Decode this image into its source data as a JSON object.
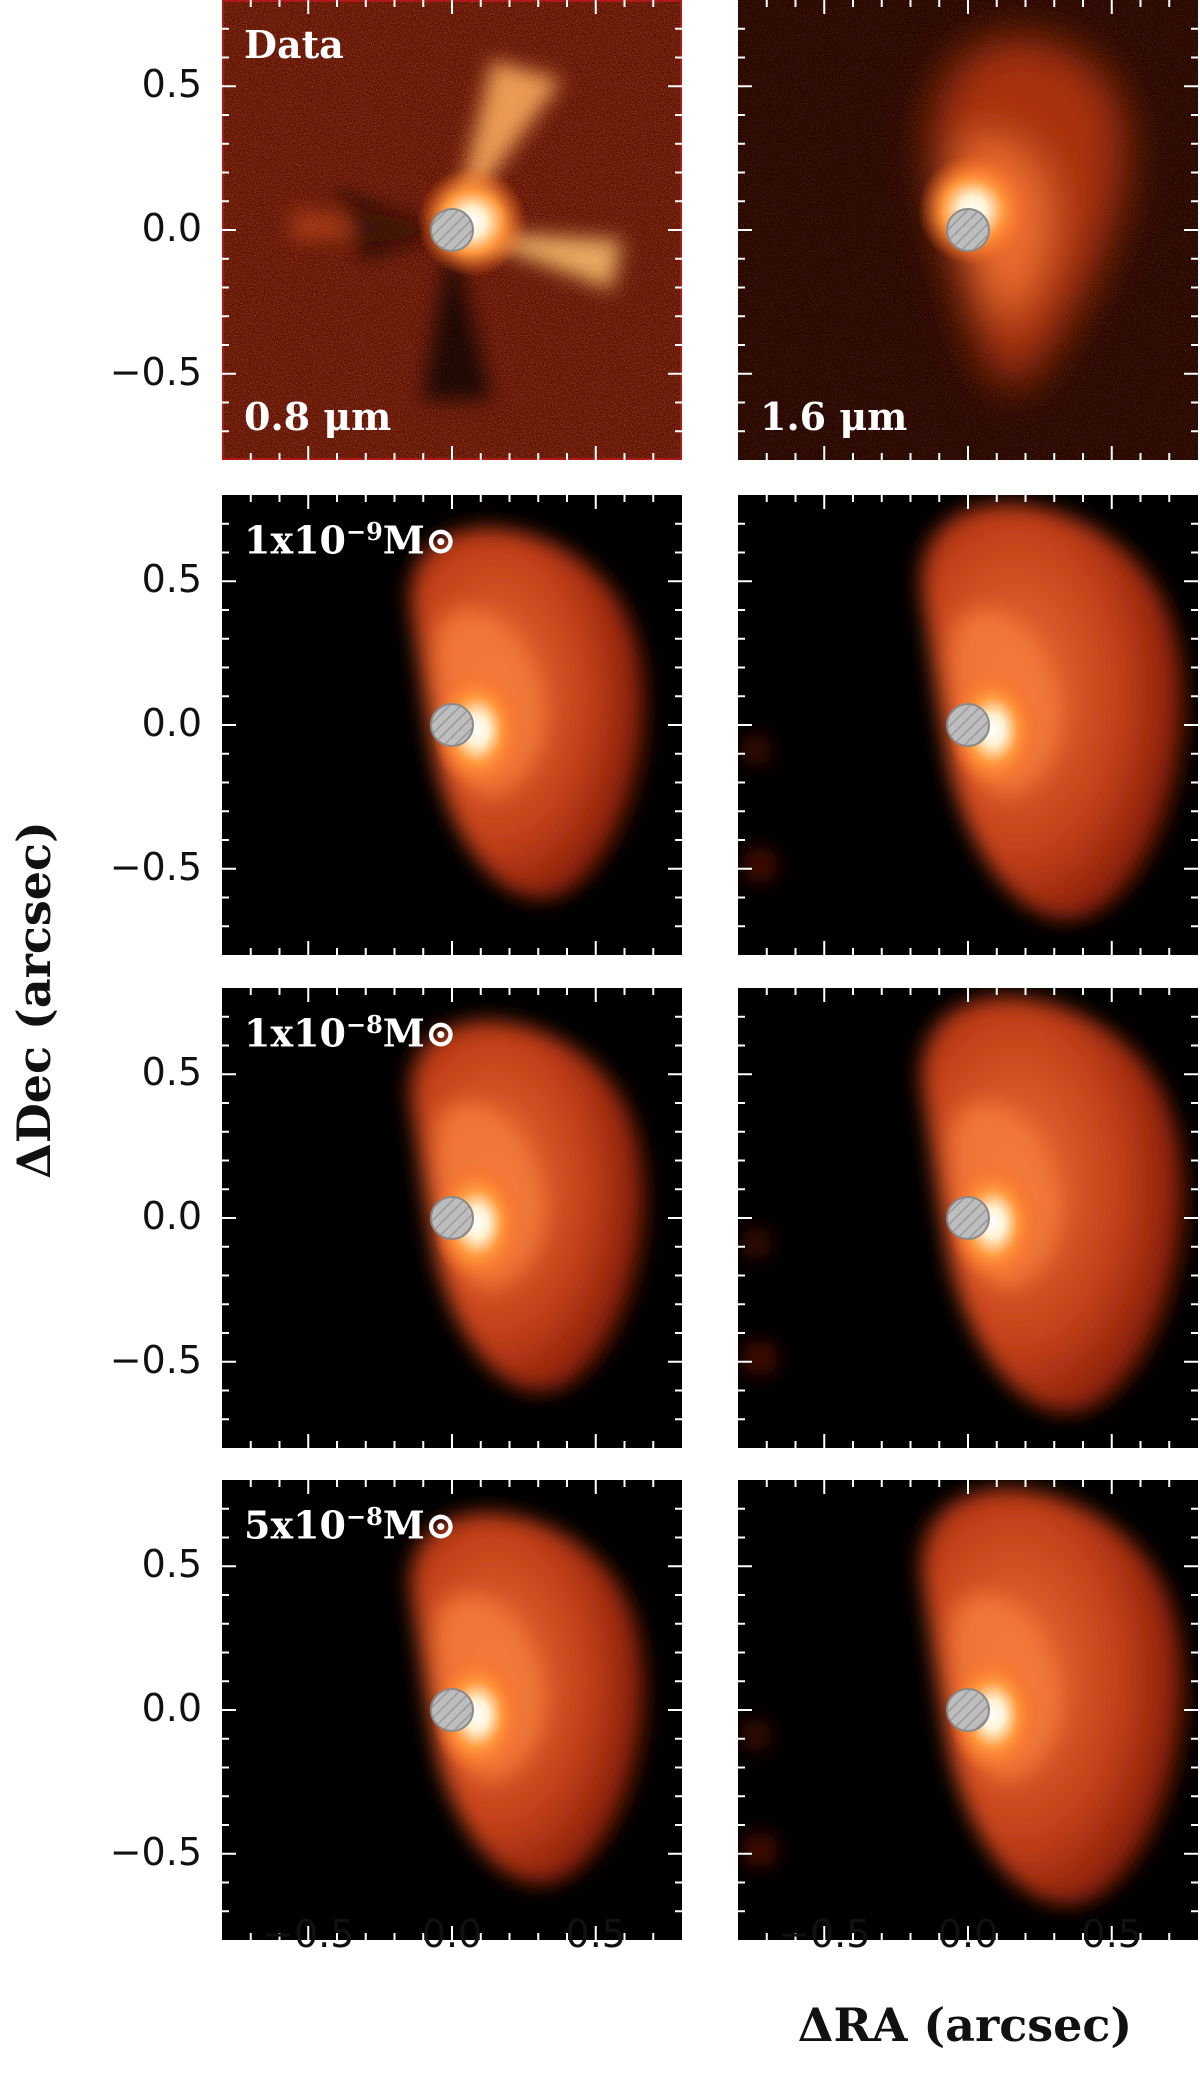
{
  "figure": {
    "ylabel": "ΔDec (arcsec)",
    "xlabel": "ΔRA (arcsec)",
    "y_ticks": [
      "0.5",
      "0.0",
      "−0.5"
    ],
    "x_ticks": [
      "−0.5",
      "0.0",
      "0.5"
    ],
    "axis_range_arcsec": [
      -0.8,
      0.8
    ],
    "colormap": "gist_heat",
    "colors": {
      "background": "#000000",
      "mask_fill": "#bdbdbd",
      "mask_edge": "#888888",
      "label_text": "#ffffff"
    }
  },
  "panels": [
    {
      "id": "p00",
      "row": 0,
      "col": 0,
      "label_top": "Data",
      "label_bottom": "0.8 μm",
      "kind": "data-short"
    },
    {
      "id": "p01",
      "row": 0,
      "col": 1,
      "label_top": "",
      "label_bottom": "1.6 μm",
      "kind": "data-long"
    },
    {
      "id": "p10",
      "row": 1,
      "col": 0,
      "label_top": "1x10",
      "label_exp": "−9",
      "label_unit": "M⊙",
      "kind": "model"
    },
    {
      "id": "p11",
      "row": 1,
      "col": 1,
      "label_top": "",
      "kind": "model-wide"
    },
    {
      "id": "p20",
      "row": 2,
      "col": 0,
      "label_top": "1x10",
      "label_exp": "−8",
      "label_unit": "M⊙",
      "kind": "model"
    },
    {
      "id": "p21",
      "row": 2,
      "col": 1,
      "label_top": "",
      "kind": "model-wide"
    },
    {
      "id": "p30",
      "row": 3,
      "col": 0,
      "label_top": "5x10",
      "label_exp": "−8",
      "label_unit": "M⊙",
      "kind": "model"
    },
    {
      "id": "p31",
      "row": 3,
      "col": 1,
      "label_top": "",
      "kind": "model-wide"
    }
  ]
}
